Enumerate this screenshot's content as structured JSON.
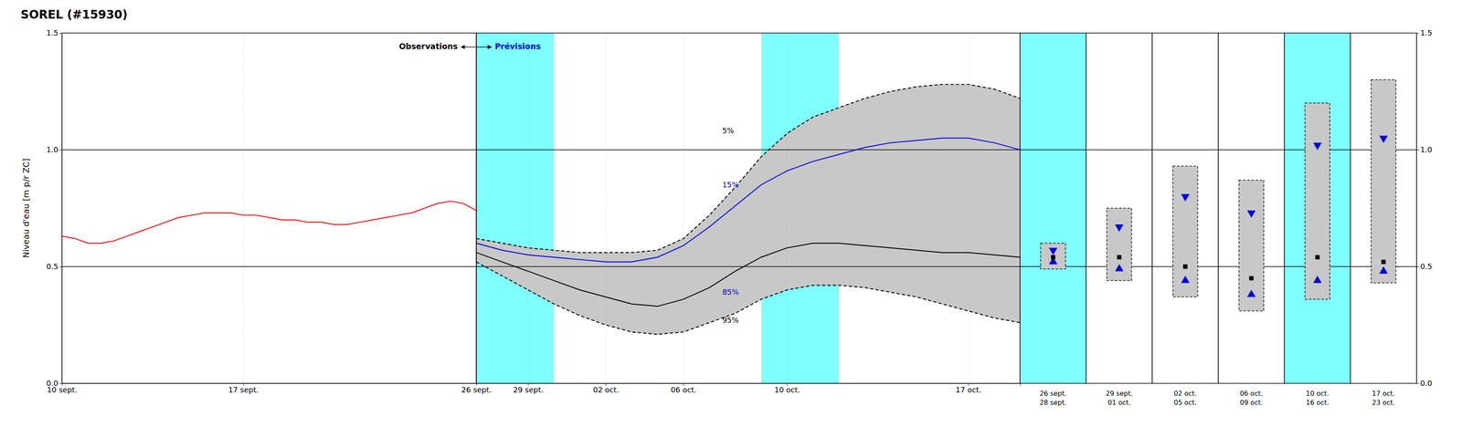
{
  "chart_data": [
    {
      "type": "line",
      "title": "SOREL (#15930)",
      "y_label": "Niveau d'eau [m p/r ZC]",
      "xlim": [
        0,
        37
      ],
      "xticks": [
        {
          "value": 0,
          "label": "10 sept."
        },
        {
          "value": 7,
          "label": "17 sept."
        },
        {
          "value": 16,
          "label": "26 sept."
        },
        {
          "value": 18,
          "label": "29 sept."
        },
        {
          "value": 21,
          "label": "02 oct."
        },
        {
          "value": 24,
          "label": "06 oct."
        },
        {
          "value": 28,
          "label": "10 oct."
        },
        {
          "value": 35,
          "label": "17 oct."
        }
      ],
      "ylim": [
        0.0,
        1.5
      ],
      "yticks": [
        {
          "value": 0.0,
          "label": "0.0"
        },
        0.5,
        {
          "value": 1.0,
          "label": "1.0"
        },
        1.5
      ],
      "grid": true,
      "series": [
        {
          "x": [
            0,
            0.5,
            1,
            1.5,
            2,
            2.5,
            3,
            3.5,
            4,
            4.5,
            5,
            5.5,
            6,
            6.5,
            7,
            7.5,
            8,
            8.5,
            9,
            9.5,
            10,
            10.5,
            11,
            11.5,
            12,
            12.5,
            13,
            13.5,
            14,
            14.5,
            15,
            15.5,
            16
          ],
          "values": [
            0.63,
            0.62,
            0.6,
            0.6,
            0.61,
            0.63,
            0.65,
            0.67,
            0.69,
            0.71,
            0.72,
            0.73,
            0.73,
            0.73,
            0.72,
            0.72,
            0.71,
            0.7,
            0.7,
            0.69,
            0.69,
            0.68,
            0.68,
            0.69,
            0.7,
            0.71,
            0.72,
            0.73,
            0.75,
            0.77,
            0.78,
            0.77,
            0.74
          ],
          "color": "#ff0000",
          "line_style": "solid"
        },
        {
          "name": "5%",
          "x": [
            16,
            17,
            18,
            19,
            20,
            21,
            22,
            23,
            24,
            25,
            26,
            27,
            28,
            29,
            30,
            31,
            32,
            33,
            34,
            35,
            36,
            37
          ],
          "values": [
            0.62,
            0.6,
            0.58,
            0.57,
            0.56,
            0.56,
            0.56,
            0.57,
            0.62,
            0.72,
            0.84,
            0.97,
            1.07,
            1.14,
            1.18,
            1.22,
            1.25,
            1.27,
            1.28,
            1.28,
            1.26,
            1.22
          ],
          "color": "#000000",
          "line_style": "dashed",
          "label_at": [
            25.5,
            1.07
          ],
          "label_color": "#000000"
        },
        {
          "name": "15%",
          "x": [
            16,
            17,
            18,
            19,
            20,
            21,
            22,
            23,
            24,
            25,
            26,
            27,
            28,
            29,
            30,
            31,
            32,
            33,
            34,
            35,
            36,
            37
          ],
          "values": [
            0.6,
            0.57,
            0.55,
            0.54,
            0.53,
            0.52,
            0.52,
            0.54,
            0.59,
            0.67,
            0.76,
            0.85,
            0.91,
            0.95,
            0.98,
            1.01,
            1.03,
            1.04,
            1.05,
            1.05,
            1.03,
            1.0
          ],
          "color": "#0000dd",
          "line_style": "solid",
          "label_at": [
            25.5,
            0.84
          ],
          "label_color": "#0000dd"
        },
        {
          "name": "85%",
          "x": [
            16,
            17,
            18,
            19,
            20,
            21,
            22,
            23,
            24,
            25,
            26,
            27,
            28,
            29,
            30,
            31,
            32,
            33,
            34,
            35,
            36,
            37
          ],
          "values": [
            0.56,
            0.52,
            0.48,
            0.44,
            0.4,
            0.37,
            0.34,
            0.33,
            0.36,
            0.41,
            0.48,
            0.54,
            0.58,
            0.6,
            0.6,
            0.59,
            0.58,
            0.57,
            0.56,
            0.56,
            0.55,
            0.54
          ],
          "color": "#000000",
          "line_style": "solid",
          "label_at": [
            25.5,
            0.38
          ],
          "label_color": "#0000dd"
        },
        {
          "name": "95%",
          "x": [
            16,
            17,
            18,
            19,
            20,
            21,
            22,
            23,
            24,
            25,
            26,
            27,
            28,
            29,
            30,
            31,
            32,
            33,
            34,
            35,
            36,
            37
          ],
          "values": [
            0.52,
            0.46,
            0.4,
            0.34,
            0.29,
            0.25,
            0.22,
            0.21,
            0.22,
            0.26,
            0.3,
            0.36,
            0.4,
            0.42,
            0.42,
            0.41,
            0.39,
            0.37,
            0.34,
            0.31,
            0.28,
            0.26
          ],
          "color": "#000000",
          "line_style": "dashed",
          "label_at": [
            25.5,
            0.26
          ],
          "label_color": "#000000"
        }
      ],
      "fill_between": [
        "5%",
        "95%"
      ],
      "fill_color": "#c8c8c8",
      "bands": [
        [
          16,
          19
        ],
        [
          27,
          30
        ]
      ],
      "band_color": "#7fffff",
      "hlines": [
        0.5,
        1.0
      ],
      "vlines": [
        16
      ],
      "annotations": [
        {
          "text": "Observations",
          "color": "#000000"
        },
        {
          "text": "Prévisions",
          "color": "#0000dd"
        }
      ]
    },
    {
      "type": "range",
      "categories": [
        "26 sept.\n28 sept.",
        "29 sept.\n01 oct.",
        "02 oct.\n05 oct.",
        "06 oct.\n09 oct.",
        "10 oct.\n16 oct.",
        "17 oct.\n23 oct."
      ],
      "p5": [
        0.6,
        0.75,
        0.93,
        0.87,
        1.2,
        1.3
      ],
      "p15": [
        0.57,
        0.67,
        0.8,
        0.73,
        1.02,
        1.05
      ],
      "median": [
        0.54,
        0.54,
        0.5,
        0.45,
        0.54,
        0.52
      ],
      "p85": [
        0.52,
        0.49,
        0.44,
        0.38,
        0.44,
        0.48
      ],
      "p95": [
        0.49,
        0.44,
        0.37,
        0.31,
        0.36,
        0.43
      ],
      "ylim": [
        0.0,
        1.5
      ],
      "yticks": [
        {
          "value": 0.0,
          "label": "0.0"
        },
        0.5,
        {
          "value": 1.0,
          "label": "1.0"
        },
        1.5
      ],
      "grid": true,
      "hlines": [
        0.5,
        1.0
      ],
      "box_color": "#c8c8c8",
      "marker_color": "#0000dd",
      "median_color": "#000000",
      "backgrounds": [
        "#7fffff",
        "#ffffff",
        "#ffffff",
        "#ffffff",
        "#7fffff",
        "#ffffff"
      ]
    }
  ]
}
